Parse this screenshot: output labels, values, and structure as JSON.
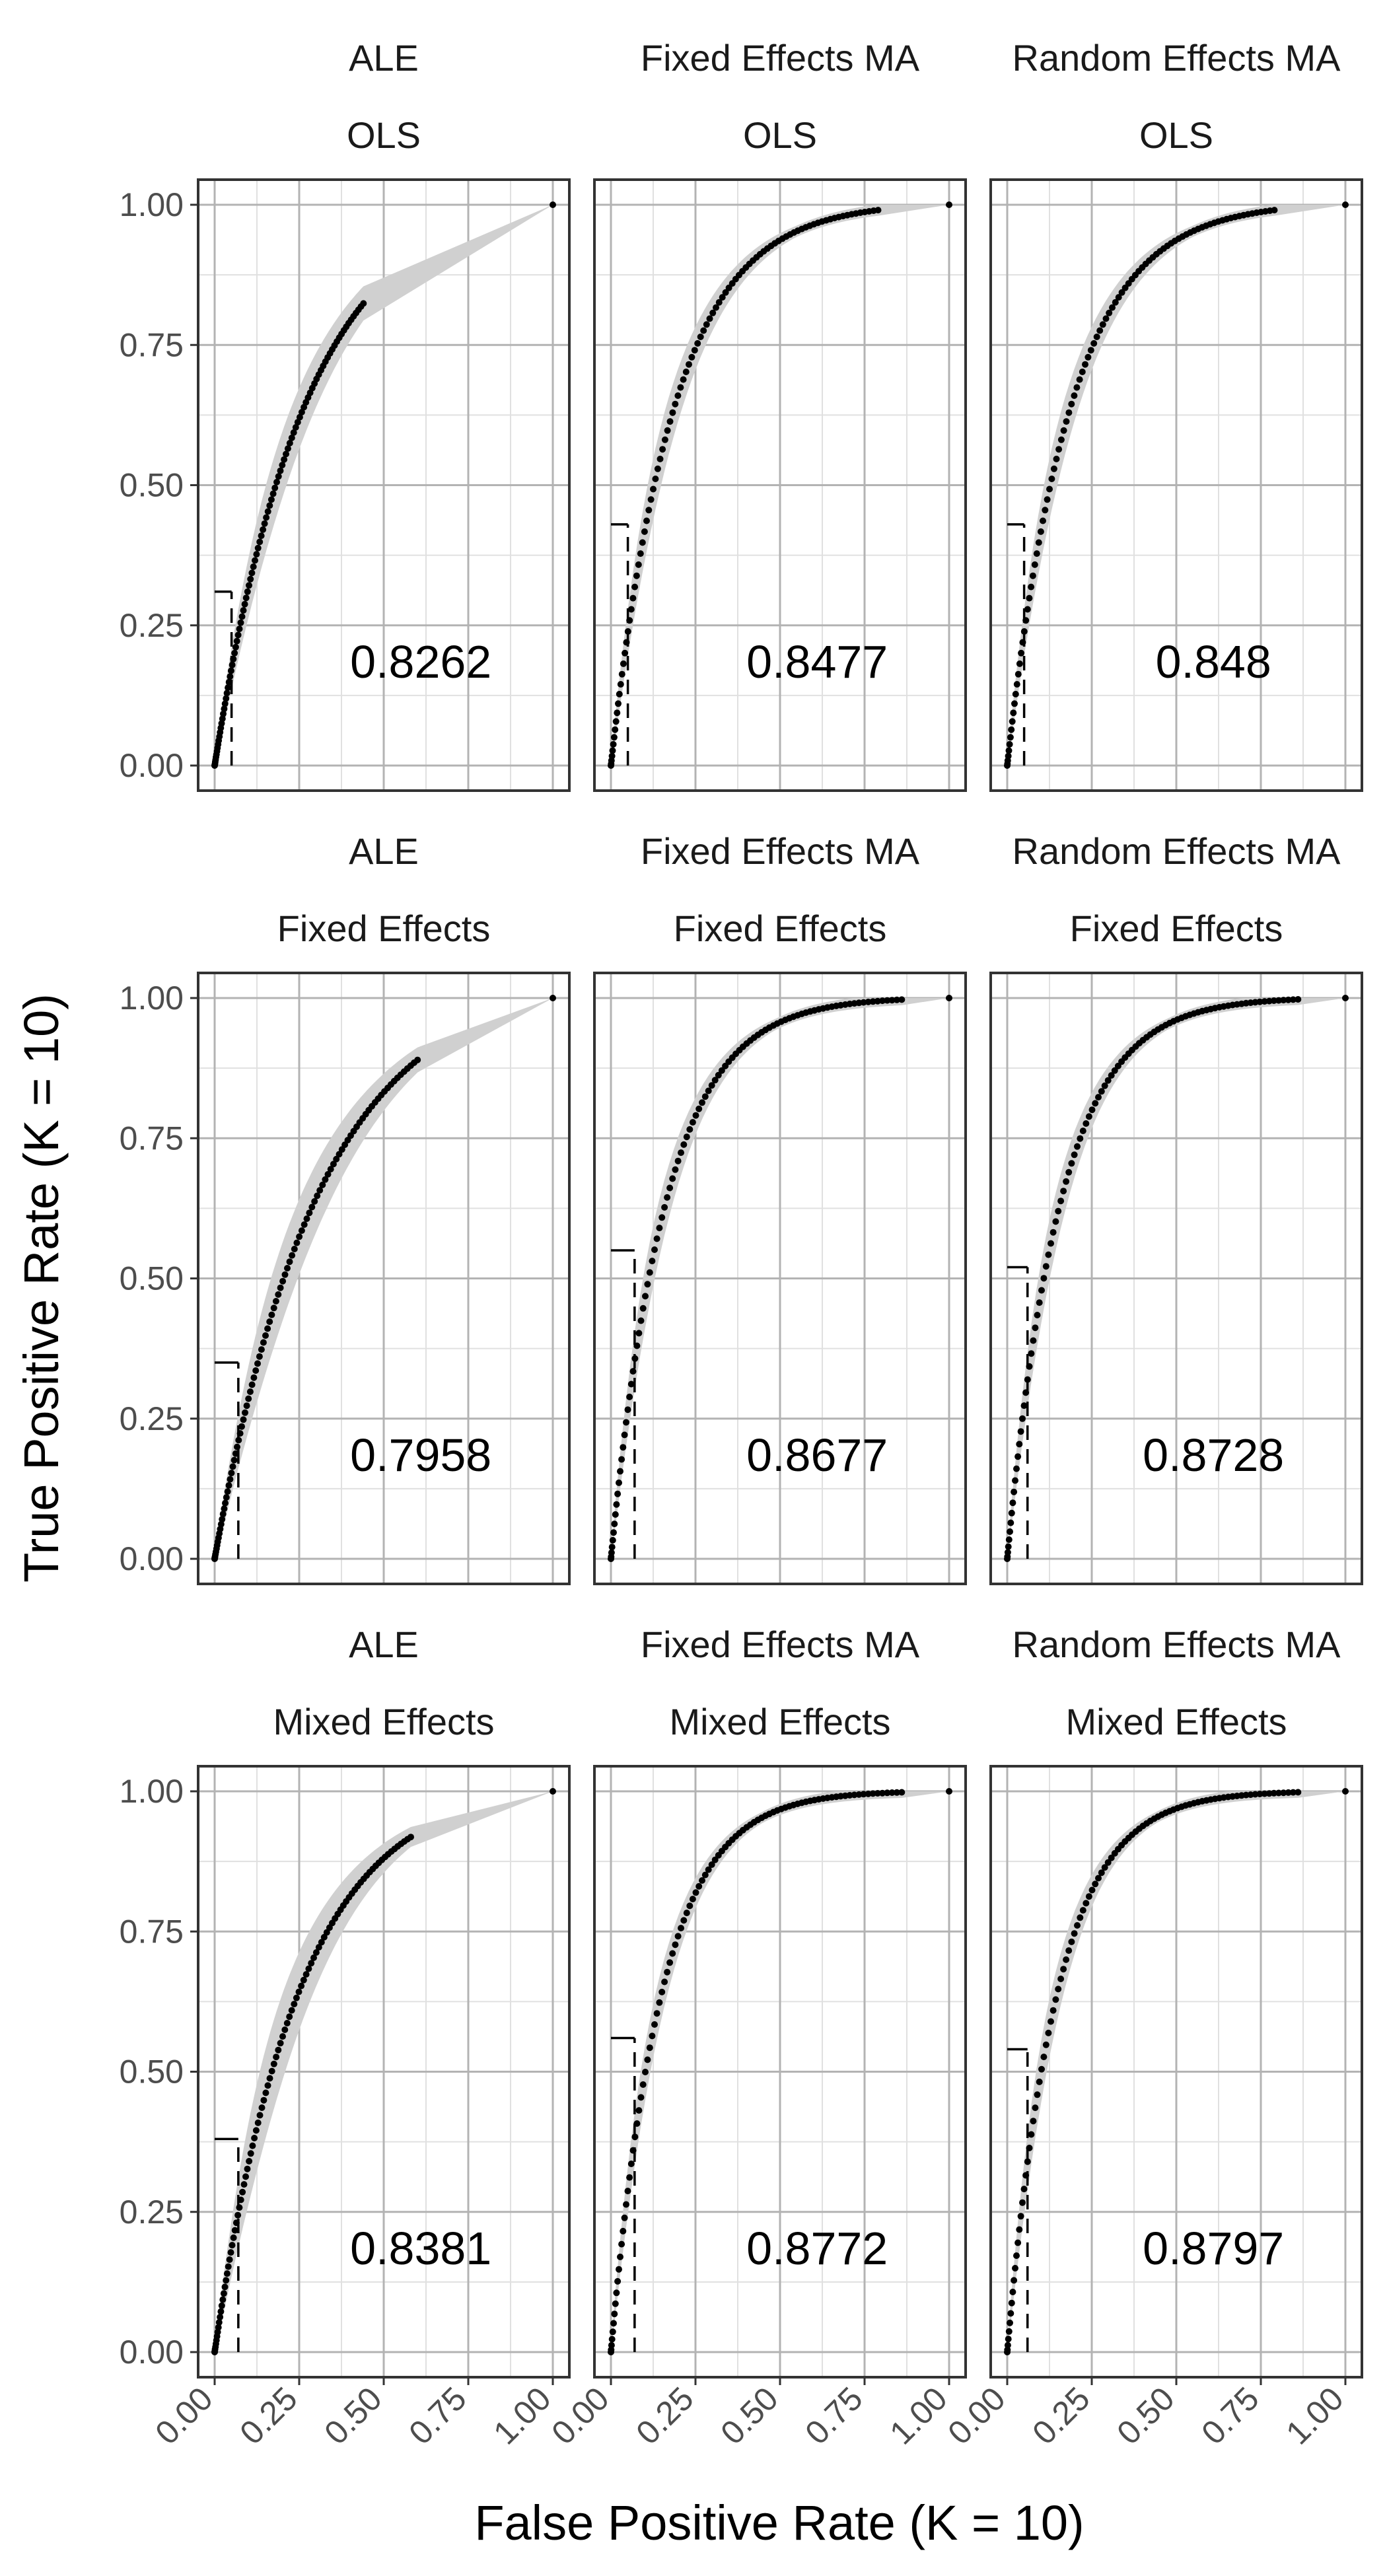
{
  "chart_data": {
    "type": "scatter",
    "xlabel": "False Positive Rate (K = 10)",
    "ylabel": "True Positive Rate (K = 10)",
    "xlim": [
      0,
      1
    ],
    "ylim": [
      0,
      1
    ],
    "x_ticks": [
      "0.00",
      "0.25",
      "0.50",
      "0.75",
      "1.00"
    ],
    "y_ticks": [
      "0.00",
      "0.25",
      "0.50",
      "0.75",
      "1.00"
    ],
    "grid": true,
    "panels": [
      {
        "col_label": "ALE",
        "row_label": "OLS",
        "auc": "0.8262",
        "curve_k": 3.7,
        "band_width": 0.05,
        "x_end": 0.44,
        "ref_x": 0.05,
        "ref_y": 0.31
      },
      {
        "col_label": "Fixed Effects MA",
        "row_label": "OLS",
        "auc": "0.8477",
        "curve_k": 5.4,
        "band_width": 0.045,
        "x_end": 0.79,
        "ref_x": 0.05,
        "ref_y": 0.43
      },
      {
        "col_label": "Random Effects MA",
        "row_label": "OLS",
        "auc": "0.848",
        "curve_k": 5.4,
        "band_width": 0.045,
        "x_end": 0.79,
        "ref_x": 0.05,
        "ref_y": 0.43
      },
      {
        "col_label": "ALE",
        "row_label": "Fixed Effects",
        "auc": "0.7958",
        "curve_k": 3.2,
        "band_width": 0.06,
        "x_end": 0.6,
        "ref_x": 0.07,
        "ref_y": 0.35
      },
      {
        "col_label": "Fixed Effects MA",
        "row_label": "Fixed Effects",
        "auc": "0.8677",
        "curve_k": 6.2,
        "band_width": 0.045,
        "x_end": 0.86,
        "ref_x": 0.07,
        "ref_y": 0.55
      },
      {
        "col_label": "Random Effects MA",
        "row_label": "Fixed Effects",
        "auc": "0.8728",
        "curve_k": 6.4,
        "band_width": 0.045,
        "x_end": 0.86,
        "ref_x": 0.06,
        "ref_y": 0.52
      },
      {
        "col_label": "ALE",
        "row_label": "Mixed Effects",
        "auc": "0.8381",
        "curve_k": 4.0,
        "band_width": 0.07,
        "x_end": 0.58,
        "ref_x": 0.07,
        "ref_y": 0.38
      },
      {
        "col_label": "Fixed Effects MA",
        "row_label": "Mixed Effects",
        "auc": "0.8772",
        "curve_k": 6.8,
        "band_width": 0.04,
        "x_end": 0.86,
        "ref_x": 0.07,
        "ref_y": 0.56
      },
      {
        "col_label": "Random Effects MA",
        "row_label": "Mixed Effects",
        "auc": "0.8797",
        "curve_k": 6.9,
        "band_width": 0.045,
        "x_end": 0.86,
        "ref_x": 0.06,
        "ref_y": 0.54
      }
    ]
  }
}
